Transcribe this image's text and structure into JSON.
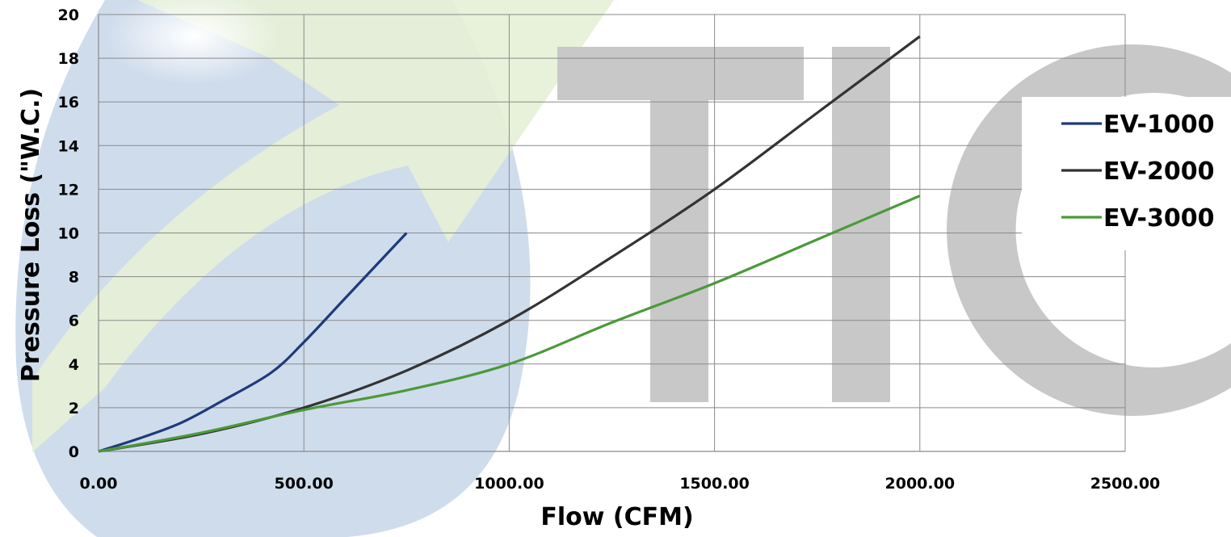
{
  "chart_data": {
    "type": "line",
    "xlabel": "Flow (CFM)",
    "ylabel": "Pressure Loss (\"W.C.)",
    "xlim": [
      0,
      2500
    ],
    "ylim": [
      0,
      20
    ],
    "x_ticks": [
      0,
      500,
      1000,
      1500,
      2000,
      2500
    ],
    "x_tick_labels": [
      "0.00",
      "500.00",
      "1000.00",
      "1500.00",
      "2000.00",
      "2500.00"
    ],
    "y_ticks": [
      0,
      2,
      4,
      6,
      8,
      10,
      12,
      14,
      16,
      18,
      20
    ],
    "y_tick_labels": [
      "0",
      "2",
      "4",
      "6",
      "8",
      "10",
      "12",
      "14",
      "16",
      "18",
      "20"
    ],
    "grid": true,
    "legend_position": "right",
    "series": [
      {
        "name": "EV-1000",
        "color": "#1f3a7a",
        "points": [
          [
            0,
            0
          ],
          [
            100,
            0.6
          ],
          [
            200,
            1.3
          ],
          [
            300,
            2.3
          ],
          [
            420,
            3.6
          ],
          [
            500,
            5.0
          ],
          [
            600,
            7.0
          ],
          [
            750,
            10.0
          ]
        ]
      },
      {
        "name": "EV-2000",
        "color": "#333333",
        "points": [
          [
            0,
            0
          ],
          [
            250,
            0.8
          ],
          [
            500,
            2.0
          ],
          [
            750,
            3.7
          ],
          [
            1000,
            6.0
          ],
          [
            1250,
            8.9
          ],
          [
            1500,
            12.0
          ],
          [
            1750,
            15.5
          ],
          [
            2000,
            19.0
          ]
        ]
      },
      {
        "name": "EV-3000",
        "color": "#4a9a3a",
        "points": [
          [
            0,
            0
          ],
          [
            250,
            0.85
          ],
          [
            500,
            1.9
          ],
          [
            750,
            2.8
          ],
          [
            1000,
            4.0
          ],
          [
            1250,
            5.9
          ],
          [
            1500,
            7.7
          ],
          [
            1750,
            9.7
          ],
          [
            2000,
            11.7
          ]
        ]
      }
    ]
  },
  "watermark": {
    "text": "TIGO"
  }
}
